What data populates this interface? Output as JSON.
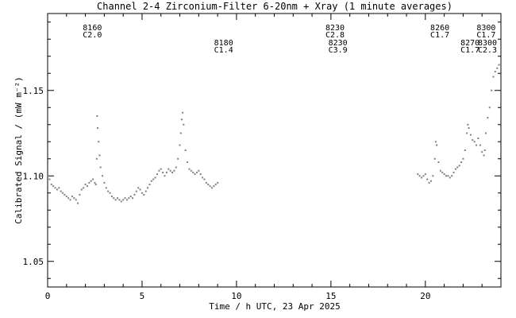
{
  "chart_data": {
    "type": "scatter",
    "title": "Channel 2-4   Zirconium-Filter   6-20nm + Xray   (1 minute averages)",
    "xlabel": "Time / h UTC, 23 Apr 2025",
    "ylabel": "Calibrated Signal / (mW m⁻²)",
    "xlim": [
      0,
      24
    ],
    "ylim": [
      1.035,
      1.195
    ],
    "xticks": [
      0,
      5,
      10,
      15,
      20
    ],
    "xtick_labels": [
      "0",
      "5",
      "10",
      "15",
      "20"
    ],
    "yticks": [
      1.05,
      1.1,
      1.15
    ],
    "ytick_labels": [
      "1.05",
      "1.10",
      "1.15"
    ],
    "grid": false,
    "point_color": "#808080",
    "flare_annotations": [
      {
        "code": "8160",
        "class": "C2.0",
        "time": 2.45,
        "row": 1
      },
      {
        "code": "8180",
        "class": "C1.4",
        "time": 9.4,
        "row": 2
      },
      {
        "code": "8230",
        "class": "C2.8",
        "time": 15.3,
        "row": 1
      },
      {
        "code": "8230",
        "class": "C3.9",
        "time": 15.45,
        "row": 2
      },
      {
        "code": "8260",
        "class": "C1.7",
        "time": 20.85,
        "row": 1
      },
      {
        "code": "8270",
        "class": "C1.7",
        "time": 22.45,
        "row": 2
      },
      {
        "code": "8300",
        "class": "C1.7",
        "time": 23.3,
        "row": 1
      },
      {
        "code": "8300",
        "class": "C2.3",
        "time": 23.55,
        "row": 2
      }
    ],
    "series": [
      {
        "points": [
          [
            0.0,
            1.1
          ],
          [
            0.1,
            1.098
          ],
          [
            0.2,
            1.095
          ],
          [
            0.3,
            1.094
          ],
          [
            0.4,
            1.093
          ],
          [
            0.5,
            1.092
          ],
          [
            0.6,
            1.093
          ],
          [
            0.7,
            1.091
          ],
          [
            0.8,
            1.09
          ],
          [
            0.9,
            1.089
          ],
          [
            1.0,
            1.088
          ],
          [
            1.1,
            1.087
          ],
          [
            1.2,
            1.086
          ],
          [
            1.3,
            1.088
          ],
          [
            1.4,
            1.087
          ],
          [
            1.5,
            1.086
          ],
          [
            1.6,
            1.084
          ],
          [
            1.7,
            1.089
          ],
          [
            1.8,
            1.092
          ],
          [
            1.9,
            1.093
          ],
          [
            2.0,
            1.095
          ],
          [
            2.1,
            1.094
          ],
          [
            2.2,
            1.096
          ],
          [
            2.3,
            1.097
          ],
          [
            2.4,
            1.098
          ],
          [
            2.5,
            1.096
          ],
          [
            2.55,
            1.095
          ],
          [
            2.6,
            1.11
          ],
          [
            2.62,
            1.135
          ],
          [
            2.65,
            1.128
          ],
          [
            2.7,
            1.12
          ],
          [
            2.75,
            1.112
          ],
          [
            2.8,
            1.105
          ],
          [
            2.9,
            1.1
          ],
          [
            3.0,
            1.096
          ],
          [
            3.1,
            1.093
          ],
          [
            3.2,
            1.091
          ],
          [
            3.3,
            1.09
          ],
          [
            3.4,
            1.088
          ],
          [
            3.5,
            1.087
          ],
          [
            3.6,
            1.086
          ],
          [
            3.7,
            1.087
          ],
          [
            3.8,
            1.086
          ],
          [
            3.9,
            1.085
          ],
          [
            4.0,
            1.086
          ],
          [
            4.1,
            1.087
          ],
          [
            4.2,
            1.086
          ],
          [
            4.3,
            1.087
          ],
          [
            4.4,
            1.088
          ],
          [
            4.5,
            1.087
          ],
          [
            4.6,
            1.089
          ],
          [
            4.7,
            1.091
          ],
          [
            4.8,
            1.093
          ],
          [
            4.9,
            1.092
          ],
          [
            5.0,
            1.09
          ],
          [
            5.1,
            1.089
          ],
          [
            5.2,
            1.091
          ],
          [
            5.3,
            1.093
          ],
          [
            5.4,
            1.095
          ],
          [
            5.5,
            1.097
          ],
          [
            5.6,
            1.098
          ],
          [
            5.7,
            1.099
          ],
          [
            5.8,
            1.101
          ],
          [
            5.9,
            1.103
          ],
          [
            6.0,
            1.104
          ],
          [
            6.1,
            1.102
          ],
          [
            6.2,
            1.1
          ],
          [
            6.3,
            1.102
          ],
          [
            6.4,
            1.104
          ],
          [
            6.5,
            1.103
          ],
          [
            6.6,
            1.102
          ],
          [
            6.7,
            1.103
          ],
          [
            6.8,
            1.105
          ],
          [
            6.9,
            1.11
          ],
          [
            7.0,
            1.118
          ],
          [
            7.05,
            1.125
          ],
          [
            7.1,
            1.133
          ],
          [
            7.15,
            1.137
          ],
          [
            7.2,
            1.13
          ],
          [
            7.3,
            1.115
          ],
          [
            7.4,
            1.108
          ],
          [
            7.5,
            1.104
          ],
          [
            7.6,
            1.103
          ],
          [
            7.7,
            1.102
          ],
          [
            7.8,
            1.101
          ],
          [
            7.9,
            1.102
          ],
          [
            8.0,
            1.103
          ],
          [
            8.1,
            1.101
          ],
          [
            8.2,
            1.099
          ],
          [
            8.3,
            1.098
          ],
          [
            8.4,
            1.096
          ],
          [
            8.5,
            1.095
          ],
          [
            8.6,
            1.094
          ],
          [
            8.7,
            1.093
          ],
          [
            8.8,
            1.094
          ],
          [
            8.9,
            1.095
          ],
          [
            9.0,
            1.096
          ],
          [
            19.6,
            1.101
          ],
          [
            19.7,
            1.1
          ],
          [
            19.8,
            1.099
          ],
          [
            19.9,
            1.1
          ],
          [
            20.0,
            1.101
          ],
          [
            20.1,
            1.098
          ],
          [
            20.2,
            1.096
          ],
          [
            20.3,
            1.097
          ],
          [
            20.4,
            1.1
          ],
          [
            20.5,
            1.11
          ],
          [
            20.55,
            1.12
          ],
          [
            20.6,
            1.118
          ],
          [
            20.7,
            1.108
          ],
          [
            20.8,
            1.103
          ],
          [
            20.9,
            1.102
          ],
          [
            21.0,
            1.101
          ],
          [
            21.1,
            1.1
          ],
          [
            21.2,
            1.1
          ],
          [
            21.3,
            1.099
          ],
          [
            21.4,
            1.1
          ],
          [
            21.5,
            1.102
          ],
          [
            21.6,
            1.104
          ],
          [
            21.7,
            1.105
          ],
          [
            21.8,
            1.106
          ],
          [
            21.9,
            1.108
          ],
          [
            22.0,
            1.11
          ],
          [
            22.1,
            1.115
          ],
          [
            22.2,
            1.125
          ],
          [
            22.25,
            1.13
          ],
          [
            22.3,
            1.128
          ],
          [
            22.4,
            1.124
          ],
          [
            22.5,
            1.121
          ],
          [
            22.6,
            1.12
          ],
          [
            22.7,
            1.118
          ],
          [
            22.8,
            1.122
          ],
          [
            22.9,
            1.118
          ],
          [
            23.0,
            1.114
          ],
          [
            23.1,
            1.112
          ],
          [
            23.15,
            1.115
          ],
          [
            23.2,
            1.125
          ],
          [
            23.3,
            1.134
          ],
          [
            23.4,
            1.14
          ],
          [
            23.5,
            1.15
          ],
          [
            23.6,
            1.158
          ],
          [
            23.7,
            1.161
          ],
          [
            23.8,
            1.163
          ],
          [
            23.9,
            1.165
          ],
          [
            24.0,
            1.168
          ]
        ]
      }
    ]
  }
}
